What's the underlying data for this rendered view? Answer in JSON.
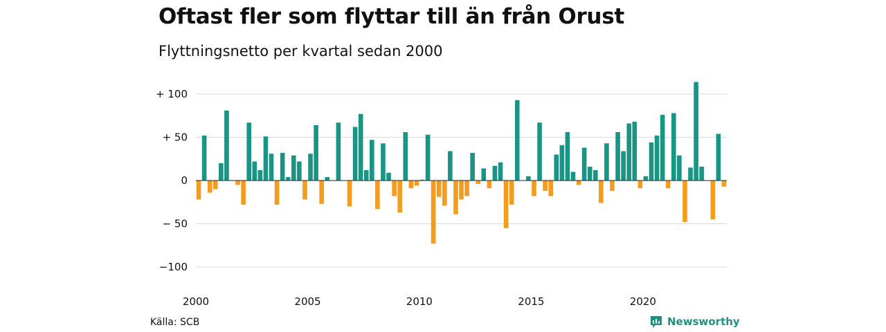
{
  "header": {
    "title": "Oftast fler som flyttar till än från Orust",
    "subtitle": "Flyttningsnetto per kvartal sedan 2000"
  },
  "footer": {
    "source": "Källa: SCB",
    "brand": "Newsworthy",
    "brand_icon": "newsworthy-logo-icon"
  },
  "colors": {
    "positive": "#1a9485",
    "negative": "#f39c1e",
    "grid": "#d9d9d9",
    "zero_line": "#222222",
    "brand": "#1f8f7f"
  },
  "chart_data": {
    "type": "bar",
    "title": "Oftast fler som flyttar till än från Orust",
    "subtitle": "Flyttningsnetto per kvartal sedan 2000",
    "xlabel": "",
    "ylabel": "",
    "x_start": "2000Q1",
    "frequency": "quarterly",
    "ylim": [
      -110,
      115
    ],
    "yticks": [
      100,
      50,
      0,
      -50,
      -100
    ],
    "ytick_labels": [
      "+ 100",
      "+  50",
      "0",
      "− 50",
      "−100"
    ],
    "xticks": [
      2000,
      2005,
      2010,
      2015,
      2020
    ],
    "xtick_labels": [
      "2000",
      "2005",
      "2010",
      "2015",
      "2020"
    ],
    "grid": true,
    "legend": "none",
    "values": [
      -22,
      52,
      -14,
      -10,
      20,
      81,
      0,
      -5,
      -28,
      67,
      22,
      12,
      51,
      31,
      -28,
      32,
      4,
      29,
      22,
      -22,
      31,
      64,
      -27,
      4,
      0,
      67,
      0,
      -30,
      62,
      77,
      12,
      47,
      -33,
      43,
      9,
      -18,
      -37,
      56,
      -9,
      -6,
      1,
      53,
      -73,
      -19,
      -29,
      34,
      -39,
      -22,
      -18,
      32,
      -4,
      14,
      -9,
      17,
      21,
      -55,
      -28,
      93,
      0,
      5,
      -18,
      67,
      -12,
      -18,
      30,
      41,
      56,
      10,
      -5,
      38,
      16,
      12,
      -26,
      43,
      -12,
      56,
      34,
      66,
      68,
      -9,
      5,
      44,
      52,
      76,
      -9,
      78,
      29,
      -48,
      15,
      114,
      16,
      0,
      -45,
      54,
      -7
    ]
  }
}
